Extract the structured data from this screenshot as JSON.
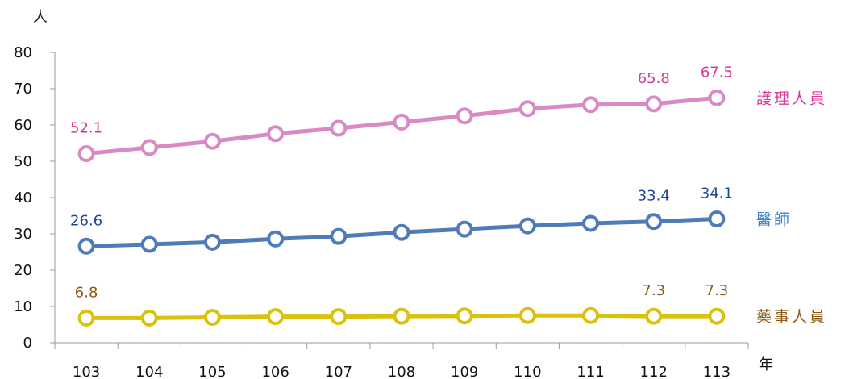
{
  "chart_data": {
    "type": "line",
    "y_unit_label": "人",
    "x_unit_label": "年",
    "categories": [
      "103",
      "104",
      "105",
      "106",
      "107",
      "108",
      "109",
      "110",
      "111",
      "112",
      "113"
    ],
    "ylim": [
      0,
      80
    ],
    "yticks": [
      0,
      10,
      20,
      30,
      40,
      50,
      60,
      70,
      80
    ],
    "grid": false,
    "series": [
      {
        "name": "護理人員",
        "color": "#d98ac4",
        "label_color": "#d63a97",
        "values": [
          52.1,
          53.8,
          55.5,
          57.6,
          59.1,
          60.8,
          62.5,
          64.5,
          65.6,
          65.8,
          67.5
        ],
        "data_labels": {
          "0": "52.1",
          "9": "65.8",
          "10": "67.5"
        }
      },
      {
        "name": "醫師",
        "color": "#4f7bb8",
        "label_color": "#1f4799",
        "series_label_color": "#3f7fd0",
        "values": [
          26.6,
          27.1,
          27.7,
          28.6,
          29.3,
          30.4,
          31.3,
          32.2,
          32.9,
          33.4,
          34.1
        ],
        "data_labels": {
          "0": "26.6",
          "9": "33.4",
          "10": "34.1"
        }
      },
      {
        "name": "藥事人員",
        "color": "#d8c20e",
        "label_color": "#8a5a12",
        "values": [
          6.8,
          6.8,
          7.0,
          7.2,
          7.2,
          7.3,
          7.4,
          7.5,
          7.5,
          7.3,
          7.3
        ],
        "data_labels": {
          "0": "6.8",
          "9": "7.3",
          "10": "7.3"
        }
      }
    ]
  }
}
